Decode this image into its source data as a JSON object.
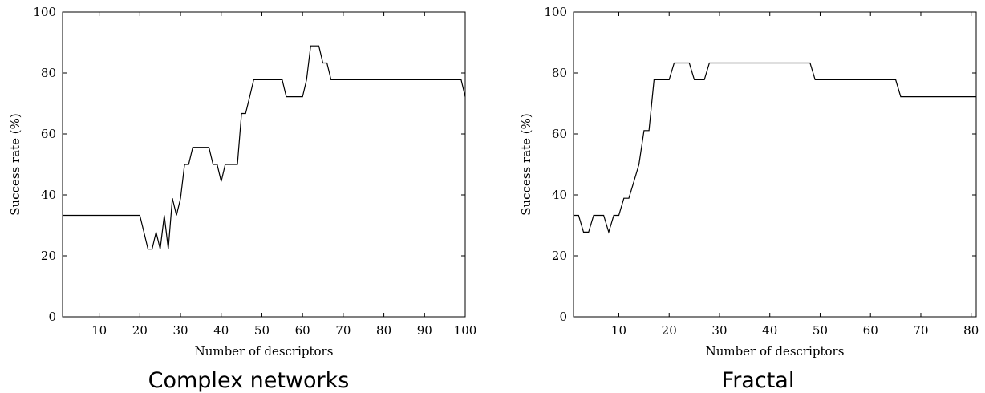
{
  "chart_data": [
    {
      "type": "line",
      "title": "Complex networks",
      "xlabel": "Number of descriptors",
      "ylabel": "Success rate (%)",
      "xlim": [
        1,
        100
      ],
      "ylim": [
        0,
        100
      ],
      "xticks": [
        10,
        20,
        30,
        40,
        50,
        60,
        70,
        80,
        90,
        100
      ],
      "yticks": [
        0,
        20,
        40,
        60,
        80,
        100
      ],
      "grid": false,
      "series": [
        {
          "x": [
            1,
            20,
            21,
            22,
            23,
            24,
            25,
            26,
            27,
            28,
            29,
            30,
            31,
            32,
            33,
            34,
            35,
            36,
            37,
            38,
            39,
            40,
            41,
            42,
            43,
            44,
            45,
            46,
            47,
            48,
            49,
            50,
            55,
            56,
            57,
            58,
            59,
            60,
            61,
            62,
            63,
            64,
            65,
            66,
            67,
            70,
            99,
            100
          ],
          "y": [
            33.3,
            33.3,
            27.8,
            22.2,
            22.2,
            27.8,
            22.2,
            33.3,
            22.2,
            38.9,
            33.3,
            38.9,
            50,
            50,
            55.6,
            55.6,
            55.6,
            55.6,
            55.6,
            50,
            50,
            44.4,
            50,
            50,
            50,
            50,
            66.7,
            66.7,
            72.2,
            77.8,
            77.8,
            77.8,
            77.8,
            72.2,
            72.2,
            72.2,
            72.2,
            72.2,
            77.8,
            88.9,
            88.9,
            88.9,
            83.3,
            83.3,
            77.8,
            77.8,
            77.8,
            72.2
          ]
        }
      ]
    },
    {
      "type": "line",
      "title": "Fractal",
      "xlabel": "Number of descriptors",
      "ylabel": "Success rate (%)",
      "xlim": [
        1,
        81
      ],
      "ylim": [
        0,
        100
      ],
      "xticks": [
        10,
        20,
        30,
        40,
        50,
        60,
        70,
        80
      ],
      "yticks": [
        0,
        20,
        40,
        60,
        80,
        100
      ],
      "grid": false,
      "series": [
        {
          "x": [
            1,
            2,
            3,
            4,
            5,
            6,
            7,
            8,
            9,
            10,
            11,
            12,
            13,
            14,
            15,
            16,
            17,
            18,
            19,
            20,
            21,
            22,
            23,
            24,
            25,
            26,
            27,
            28,
            30,
            40,
            48,
            49,
            50,
            60,
            65,
            66,
            70,
            81
          ],
          "y": [
            33.3,
            33.3,
            27.8,
            27.8,
            33.3,
            33.3,
            33.3,
            27.8,
            33.3,
            33.3,
            38.9,
            38.9,
            44.4,
            50,
            61.1,
            61.1,
            77.8,
            77.8,
            77.8,
            77.8,
            83.3,
            83.3,
            83.3,
            83.3,
            77.8,
            77.8,
            77.8,
            83.3,
            83.3,
            83.3,
            83.3,
            77.8,
            77.8,
            77.8,
            77.8,
            72.2,
            72.2,
            72.2
          ]
        }
      ]
    }
  ]
}
